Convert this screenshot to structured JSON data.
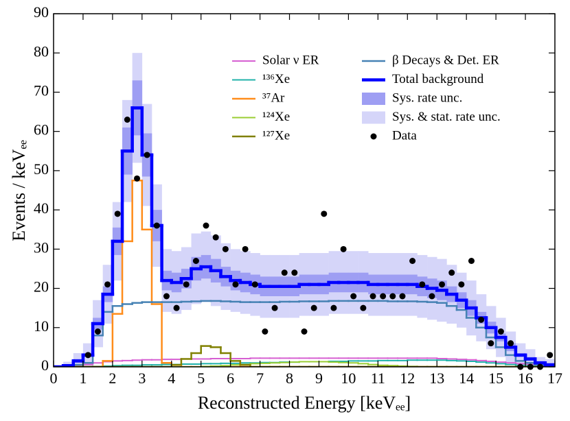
{
  "chart_data": {
    "type": "histogram",
    "x_label": "Reconstructed Energy [keVₑₑ]",
    "y_label": "Events / keVₑₑ",
    "xlim": [
      0,
      17
    ],
    "ylim": [
      0,
      90
    ],
    "xticks": [
      0,
      1,
      2,
      3,
      4,
      5,
      6,
      7,
      8,
      9,
      10,
      11,
      12,
      13,
      14,
      15,
      16,
      17
    ],
    "yticks": [
      0,
      10,
      20,
      30,
      40,
      50,
      60,
      70,
      80,
      90
    ],
    "legend": "upper right",
    "bins": [
      0,
      0.33,
      0.67,
      1,
      1.33,
      1.67,
      2,
      2.33,
      2.67,
      3,
      3.33,
      3.67,
      4,
      4.33,
      4.67,
      5,
      5.33,
      5.67,
      6,
      6.33,
      6.67,
      7,
      7.33,
      7.67,
      8,
      8.33,
      8.67,
      9,
      9.33,
      9.67,
      10,
      10.33,
      10.67,
      11,
      11.33,
      11.67,
      12,
      12.33,
      12.67,
      13,
      13.33,
      13.67,
      14,
      14.33,
      14.67,
      15,
      15.33,
      15.67,
      16,
      16.33,
      16.67,
      17
    ],
    "series": [
      {
        "name": "Solar ν ER",
        "color": "#d65fd2",
        "linewidth": 2,
        "values": [
          0,
          0.1,
          0.3,
          0.6,
          1,
          1.3,
          1.5,
          1.6,
          1.7,
          1.8,
          1.8,
          1.9,
          1.9,
          2,
          2,
          2,
          2.1,
          2.1,
          2.1,
          2.1,
          2.2,
          2.2,
          2.2,
          2.2,
          2.2,
          2.2,
          2.2,
          2.2,
          2.2,
          2.2,
          2.2,
          2.2,
          2.2,
          2.2,
          2.2,
          2.2,
          2.2,
          2.2,
          2.2,
          2.1,
          2,
          1.9,
          1.8,
          1.6,
          1.4,
          1.2,
          1,
          0.8,
          0.6,
          0.4,
          0.3
        ]
      },
      {
        "name": "¹³⁶Xe",
        "color": "#20b2aa",
        "linewidth": 2,
        "values": [
          0,
          0,
          0,
          0,
          0.1,
          0.2,
          0.3,
          0.4,
          0.4,
          0.5,
          0.5,
          0.6,
          0.6,
          0.7,
          0.7,
          0.8,
          0.8,
          0.9,
          0.9,
          1,
          1,
          1.1,
          1.1,
          1.2,
          1.2,
          1.3,
          1.3,
          1.3,
          1.4,
          1.4,
          1.5,
          1.5,
          1.5,
          1.6,
          1.6,
          1.6,
          1.7,
          1.7,
          1.7,
          1.7,
          1.6,
          1.5,
          1.4,
          1.2,
          1,
          0.8,
          0.6,
          0.4,
          0.3,
          0.2,
          0.1
        ]
      },
      {
        "name": "³⁷Ar",
        "color": "#ff8c1a",
        "linewidth": 2.5,
        "values": [
          0,
          0,
          0,
          0,
          0,
          1.5,
          13.5,
          32,
          47.5,
          35,
          16,
          1,
          0,
          0,
          0,
          0,
          0,
          0,
          0,
          0,
          0,
          0,
          0,
          0,
          0,
          0,
          0,
          0,
          0,
          0,
          0,
          0,
          0,
          0,
          0,
          0,
          0,
          0,
          0,
          0,
          0,
          0,
          0,
          0,
          0,
          0,
          0,
          0,
          0,
          0,
          0
        ]
      },
      {
        "name": "¹²⁴Xe",
        "color": "#9acd32",
        "linewidth": 2,
        "values": [
          0,
          0,
          0,
          0,
          0,
          0,
          0,
          0,
          0,
          0,
          0,
          0,
          0,
          0,
          0,
          0.1,
          0.2,
          0.3,
          0.5,
          0.6,
          0.8,
          0.9,
          1,
          1.1,
          1.2,
          1.3,
          1.3,
          1.3,
          1.2,
          1.1,
          1,
          0.8,
          0.6,
          0.4,
          0.3,
          0.2,
          0.1,
          0,
          0,
          0,
          0,
          0,
          0,
          0,
          0,
          0,
          0,
          0,
          0,
          0,
          0
        ]
      },
      {
        "name": "¹²⁷Xe",
        "color": "#808000",
        "linewidth": 2.5,
        "values": [
          0,
          0,
          0,
          0,
          0,
          0,
          0,
          0,
          0,
          0,
          0,
          0,
          0.5,
          2,
          3.5,
          5.3,
          5,
          3.5,
          1.5,
          0.5,
          0,
          0,
          0,
          0,
          0,
          0,
          0,
          0,
          0,
          0,
          0,
          0,
          0,
          0,
          0,
          0,
          0,
          0,
          0,
          0,
          0,
          0,
          0,
          0,
          0,
          0,
          0,
          0,
          0,
          0,
          0
        ]
      },
      {
        "name": "β Decays & Det. ER",
        "color": "#4682b4",
        "linewidth": 2.5,
        "values": [
          0,
          0,
          0.5,
          1,
          8,
          14,
          15.5,
          16,
          16.3,
          16.5,
          16.5,
          16.5,
          16.5,
          16.6,
          16.7,
          16.8,
          16.8,
          16.7,
          16.6,
          16.5,
          16.5,
          16.5,
          16.5,
          16.6,
          16.6,
          16.7,
          16.7,
          16.7,
          16.8,
          16.8,
          16.8,
          16.8,
          16.8,
          16.8,
          16.7,
          16.7,
          16.7,
          16.6,
          16.5,
          16.3,
          15.5,
          14.5,
          12.5,
          10,
          7.5,
          5,
          3,
          1.5,
          1,
          0.5,
          0.3
        ]
      },
      {
        "name": "Total background",
        "color": "#0000ff",
        "linewidth": 4.5,
        "values": [
          0,
          0.3,
          1.5,
          3,
          11,
          18.5,
          32,
          55,
          66,
          54,
          36,
          22,
          21.5,
          22.5,
          25,
          25.5,
          24.5,
          23,
          22,
          21.5,
          21,
          20.5,
          20.5,
          20.5,
          20.5,
          21,
          21,
          21,
          21.5,
          21.5,
          21.5,
          21.5,
          21,
          21,
          21,
          21,
          21,
          20.5,
          20,
          19.5,
          18.5,
          17,
          15,
          12.5,
          10,
          7.5,
          5,
          3,
          2,
          1,
          0.5
        ]
      }
    ],
    "bands": [
      {
        "name": "Sys. rate unc.",
        "color": "#9e9ef3",
        "lower": [
          0,
          0,
          1,
          2.5,
          9.5,
          16.5,
          28.5,
          49,
          59,
          48.5,
          32,
          19.5,
          19,
          20,
          22,
          22.5,
          21.5,
          20.5,
          19.5,
          19,
          18.5,
          18,
          18,
          18,
          18,
          18.5,
          18.5,
          18.5,
          19,
          19,
          19,
          19,
          18.5,
          18.5,
          18.5,
          18.5,
          18.5,
          18,
          17.5,
          17,
          16.5,
          15,
          13,
          11,
          8.5,
          6.5,
          4,
          2.5,
          1.5,
          0.5,
          0
        ],
        "upper": [
          0,
          0.6,
          2,
          3.5,
          12.5,
          20.5,
          35.5,
          61,
          73,
          59.5,
          40,
          24.5,
          24,
          25,
          28,
          28.5,
          27.5,
          25.5,
          24.5,
          24,
          23.5,
          23,
          23,
          23,
          23,
          23.5,
          23.5,
          23.5,
          24,
          24,
          24,
          24,
          23.5,
          23.5,
          23.5,
          23.5,
          23.5,
          23,
          22.5,
          22,
          20.5,
          19,
          17,
          14,
          11.5,
          8.5,
          6,
          3.5,
          2.5,
          1.5,
          1
        ]
      },
      {
        "name": "Sys. & stat. rate unc.",
        "color": "#d5d5f9",
        "lower": [
          0,
          0,
          0,
          0,
          5,
          11,
          22,
          42,
          52,
          41,
          25.5,
          14,
          13.5,
          14.5,
          16,
          16.5,
          15.5,
          14.5,
          14,
          13.5,
          13,
          12.5,
          12.5,
          12.5,
          12.5,
          13,
          13,
          13,
          13.5,
          13.5,
          13.5,
          13.5,
          13,
          13,
          13,
          13,
          13,
          12.5,
          12,
          11.5,
          11,
          10,
          8,
          6.5,
          4.5,
          2.5,
          1,
          0,
          0,
          0,
          0
        ],
        "upper": [
          0,
          1.3,
          3.5,
          6,
          17,
          26,
          42,
          68,
          80,
          67,
          46.5,
          30,
          29.5,
          30.5,
          34,
          34.5,
          33.5,
          31.5,
          30,
          29.5,
          29,
          28.5,
          28.5,
          28.5,
          28.5,
          29,
          29,
          29,
          29.5,
          29.5,
          29.5,
          29.5,
          29,
          29,
          29,
          29,
          29,
          28.5,
          28,
          27.5,
          26,
          24,
          22,
          18.5,
          15.5,
          12.5,
          9,
          6,
          4.5,
          2.5,
          2
        ]
      }
    ],
    "scatter": {
      "name": "Data",
      "color": "#000000",
      "x": [
        1.17,
        1.5,
        1.83,
        2.17,
        2.5,
        2.83,
        3.17,
        3.5,
        3.83,
        4.17,
        4.5,
        4.83,
        5.17,
        5.5,
        5.83,
        6.17,
        6.5,
        6.83,
        7.17,
        7.5,
        7.83,
        8.17,
        8.5,
        8.83,
        9.17,
        9.5,
        9.83,
        10.17,
        10.5,
        10.83,
        11.17,
        11.5,
        11.83,
        12.17,
        12.5,
        12.83,
        13.17,
        13.5,
        13.83,
        14.17,
        14.5,
        14.83,
        15.17,
        15.5,
        15.83,
        16.17,
        16.5,
        16.83
      ],
      "values": [
        3,
        9,
        21,
        39,
        63,
        48,
        54,
        36,
        18,
        15,
        21,
        27,
        36,
        33,
        30,
        21,
        30,
        21,
        9,
        15,
        24,
        24,
        9,
        15,
        39,
        15,
        30,
        18,
        15,
        18,
        18,
        18,
        18,
        27,
        21,
        18,
        21,
        24,
        21,
        27,
        12,
        6,
        9,
        6,
        0,
        0,
        0,
        3
      ]
    }
  }
}
